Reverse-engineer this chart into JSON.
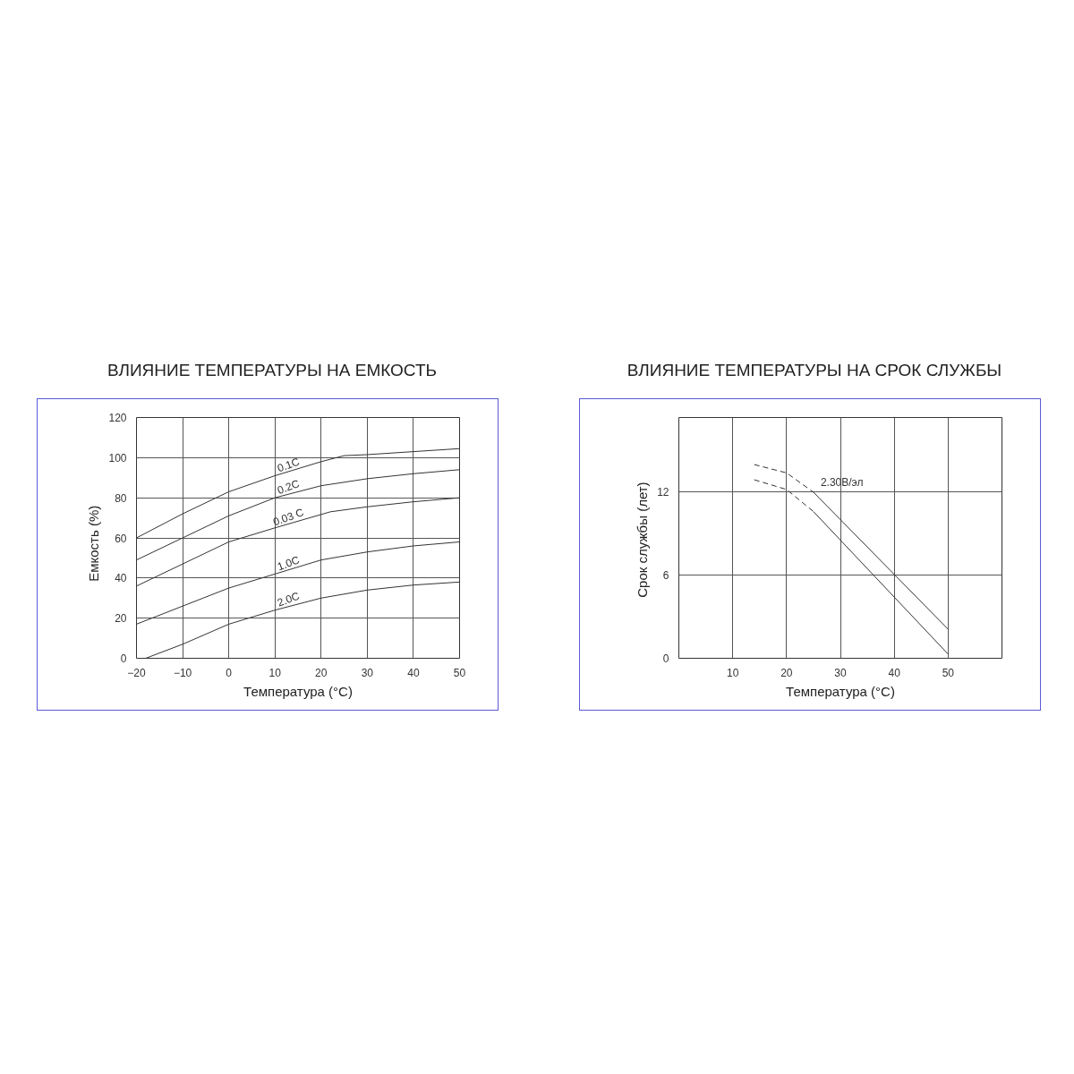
{
  "chart_data": [
    {
      "type": "line",
      "title": "ВЛИЯНИЕ ТЕМПЕРАТУРЫ НА ЕМКОСТЬ",
      "xlabel": "Температура (°C)",
      "ylabel": "Емкость    (%)",
      "xlim": [
        -20,
        50
      ],
      "ylim": [
        0,
        120
      ],
      "xticks": [
        -20,
        -10,
        0,
        10,
        20,
        30,
        40,
        50
      ],
      "yticks": [
        0,
        20,
        40,
        60,
        80,
        100,
        120
      ],
      "grid": true,
      "line_style": "solid",
      "series": [
        {
          "name": "0.1C",
          "color": "#333333",
          "x": [
            -20,
            -10,
            0,
            10,
            20,
            25,
            30,
            40,
            50
          ],
          "values": [
            60,
            72,
            83,
            91,
            98,
            101,
            101.5,
            103,
            104.5
          ]
        },
        {
          "name": "0.2C",
          "color": "#333333",
          "x": [
            -20,
            -10,
            0,
            10,
            20,
            30,
            40,
            50
          ],
          "values": [
            49,
            60,
            71,
            80,
            86,
            89.5,
            92,
            94
          ]
        },
        {
          "name": "0.03 C",
          "color": "#333333",
          "x": [
            -20,
            -10,
            0,
            10,
            22,
            30,
            40,
            50
          ],
          "values": [
            36,
            47,
            58,
            65,
            73,
            75.5,
            78,
            80
          ]
        },
        {
          "name": "1.0C",
          "color": "#333333",
          "x": [
            -20,
            -10,
            0,
            10,
            20,
            30,
            40,
            50
          ],
          "values": [
            17,
            26,
            35,
            42,
            49,
            53,
            56,
            58
          ]
        },
        {
          "name": "2.0C",
          "color": "#333333",
          "x": [
            -18,
            -10,
            0,
            10,
            20,
            30,
            40,
            50
          ],
          "values": [
            0,
            7,
            17,
            24,
            30,
            34,
            36.5,
            38
          ]
        }
      ]
    },
    {
      "type": "line",
      "title": "ВЛИЯНИЕ ТЕМПЕРАТУРЫ НА СРОК СЛУЖБЫ",
      "xlabel": "Температура (°C)",
      "ylabel": "Срок службы  (лет)",
      "xlim": [
        0,
        60
      ],
      "ylim": [
        0,
        17.4
      ],
      "xticks": [
        10,
        20,
        30,
        40,
        50
      ],
      "yticks": [
        0,
        6,
        12
      ],
      "grid": true,
      "series": [
        {
          "color": "#333333",
          "line_style": "dashed",
          "x": [
            14,
            20,
            25
          ],
          "values": [
            14.0,
            13.4,
            12.0
          ]
        },
        {
          "name": "2.30В/эл",
          "color": "#333333",
          "line_style": "solid",
          "x": [
            25,
            50
          ],
          "values": [
            12.0,
            2.1
          ]
        },
        {
          "color": "#333333",
          "line_style": "dashed",
          "x": [
            14,
            20,
            25
          ],
          "values": [
            12.9,
            12.2,
            10.6
          ]
        },
        {
          "color": "#333333",
          "line_style": "solid",
          "x": [
            25,
            50
          ],
          "values": [
            10.6,
            0.3
          ]
        }
      ]
    }
  ]
}
